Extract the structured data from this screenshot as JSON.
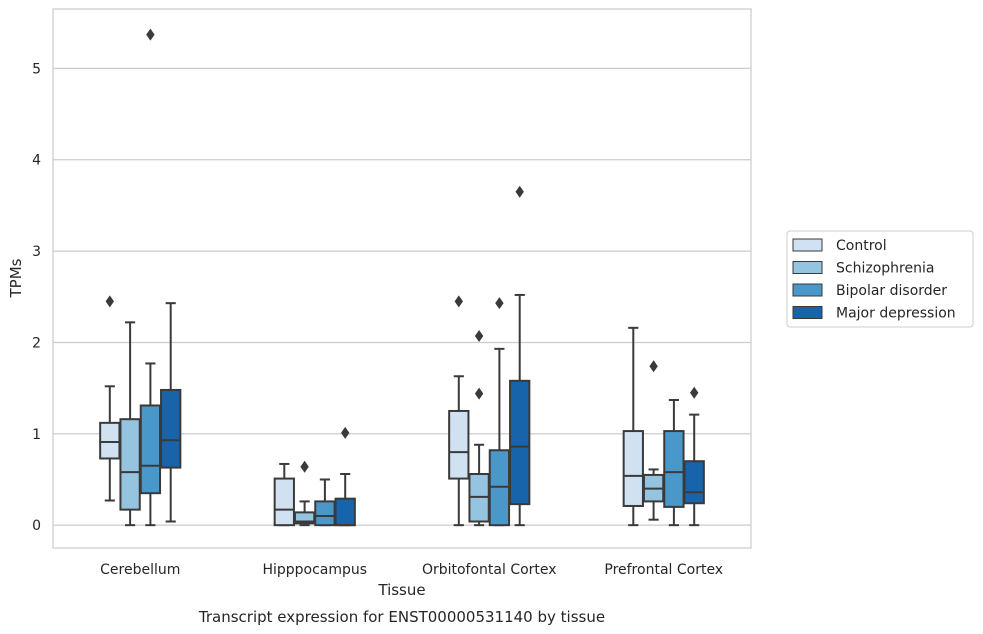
{
  "chart_data": {
    "type": "boxplot",
    "caption": "Transcript expression for ENST00000531140 by tissue",
    "xlabel": "Tissue",
    "ylabel": "TPMs",
    "ylim": [
      -0.25,
      5.65
    ],
    "yticks": [
      0,
      1,
      2,
      3,
      4,
      5
    ],
    "grid": "horizontal",
    "legend_position": "right",
    "categories": [
      "Cerebellum",
      "Hipppocampus",
      "Orbitofontal Cortex",
      "Prefrontal Cortex"
    ],
    "series": [
      {
        "name": "Control",
        "color": "#d0e1f2",
        "boxes": [
          {
            "whislo": 0.27,
            "q1": 0.73,
            "med": 0.91,
            "q3": 1.12,
            "whishi": 1.52,
            "fliers": [
              2.45
            ]
          },
          {
            "whislo": 0.0,
            "q1": 0.0,
            "med": 0.17,
            "q3": 0.51,
            "whishi": 0.67,
            "fliers": []
          },
          {
            "whislo": 0.0,
            "q1": 0.51,
            "med": 0.8,
            "q3": 1.25,
            "whishi": 1.63,
            "fliers": [
              2.45
            ]
          },
          {
            "whislo": 0.0,
            "q1": 0.21,
            "med": 0.54,
            "q3": 1.03,
            "whishi": 2.16,
            "fliers": []
          }
        ]
      },
      {
        "name": "Schizophrenia",
        "color": "#94c4df",
        "boxes": [
          {
            "whislo": 0.0,
            "q1": 0.17,
            "med": 0.58,
            "q3": 1.16,
            "whishi": 2.22,
            "fliers": []
          },
          {
            "whislo": 0.0,
            "q1": 0.02,
            "med": 0.04,
            "q3": 0.14,
            "whishi": 0.26,
            "fliers": [
              0.64
            ]
          },
          {
            "whislo": 0.0,
            "q1": 0.04,
            "med": 0.31,
            "q3": 0.56,
            "whishi": 0.88,
            "fliers": [
              1.44,
              2.07
            ]
          },
          {
            "whislo": 0.06,
            "q1": 0.26,
            "med": 0.4,
            "q3": 0.55,
            "whishi": 0.61,
            "fliers": [
              1.74
            ]
          }
        ]
      },
      {
        "name": "Bipolar disorder",
        "color": "#4a98c9",
        "boxes": [
          {
            "whislo": 0.0,
            "q1": 0.35,
            "med": 0.65,
            "q3": 1.31,
            "whishi": 1.77,
            "fliers": [
              5.37
            ]
          },
          {
            "whislo": 0.0,
            "q1": 0.0,
            "med": 0.1,
            "q3": 0.26,
            "whishi": 0.5,
            "fliers": []
          },
          {
            "whislo": 0.0,
            "q1": 0.0,
            "med": 0.42,
            "q3": 0.82,
            "whishi": 1.93,
            "fliers": [
              2.43
            ]
          },
          {
            "whislo": 0.0,
            "q1": 0.2,
            "med": 0.58,
            "q3": 1.03,
            "whishi": 1.37,
            "fliers": []
          }
        ]
      },
      {
        "name": "Major depression",
        "color": "#1764ab",
        "boxes": [
          {
            "whislo": 0.04,
            "q1": 0.63,
            "med": 0.93,
            "q3": 1.48,
            "whishi": 2.43,
            "fliers": []
          },
          {
            "whislo": 0.0,
            "q1": 0.0,
            "med": 0.0,
            "q3": 0.29,
            "whishi": 0.56,
            "fliers": [
              1.01
            ]
          },
          {
            "whislo": 0.0,
            "q1": 0.23,
            "med": 0.86,
            "q3": 1.58,
            "whishi": 2.52,
            "fliers": [
              3.65
            ]
          },
          {
            "whislo": 0.0,
            "q1": 0.24,
            "med": 0.36,
            "q3": 0.7,
            "whishi": 1.21,
            "fliers": [
              1.45
            ]
          }
        ]
      }
    ]
  }
}
